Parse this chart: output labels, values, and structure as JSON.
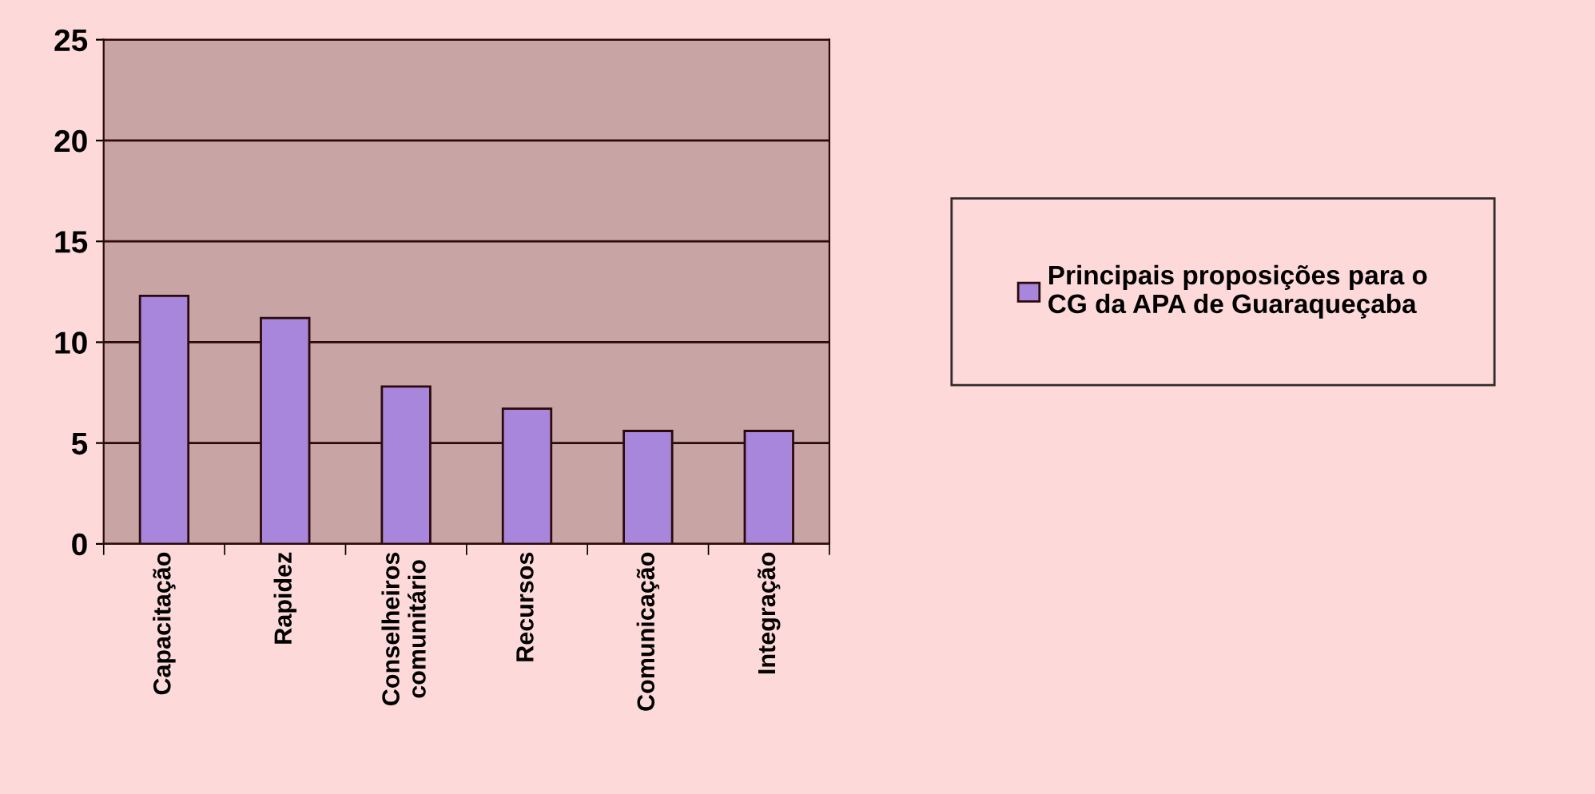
{
  "chart_data": {
    "type": "bar",
    "categories": [
      "Capacitação",
      "Rapidez",
      "Conselheiros\ncomunitário",
      "Recursos",
      "Comunicação",
      "Integração"
    ],
    "series": [
      {
        "name": "Principais proposições para o\nCG da APA de Guaraqueçaba",
        "color": "#a886db",
        "values": [
          12.3,
          11.2,
          7.8,
          6.7,
          5.6,
          5.6
        ]
      }
    ],
    "ylim": [
      0,
      25
    ],
    "yticks": [
      0,
      5,
      10,
      15,
      20,
      25
    ],
    "grid": "y",
    "legend": "right"
  }
}
